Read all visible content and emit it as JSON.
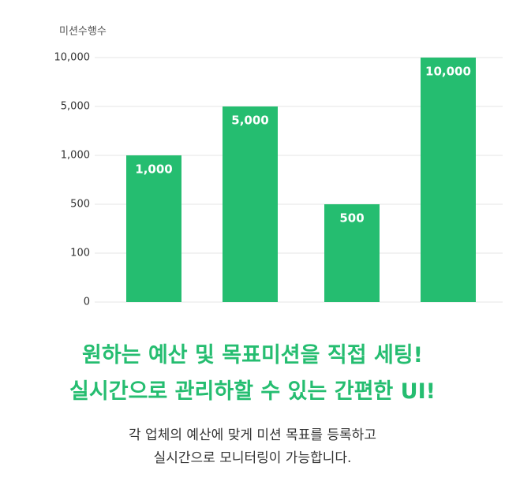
{
  "chart_data": {
    "type": "bar",
    "y_label": "미션수행수",
    "categories": [
      null,
      null,
      null,
      null
    ],
    "values": [
      1000,
      5000,
      500,
      10000
    ],
    "value_labels": [
      "1,000",
      "5,000",
      "500",
      "10,000"
    ],
    "color": "#25bd70",
    "ylim": [
      0,
      10000
    ],
    "yticks": [
      0,
      100,
      500,
      {
        "value": 1000,
        "label": "1,000"
      },
      {
        "value": 5000,
        "label": "5,000"
      },
      {
        "value": 10000,
        "label": "10,000"
      }
    ],
    "grid": true
  },
  "headline": [
    "원하는 예산 및 목표미션을 직접 세팅!",
    "실시간으로 관리하할 수 있는 간편한 UI!"
  ],
  "description": [
    "각 업체의 예산에 맞게 미션 목표를 등록하고",
    "실시간으로 모니터링이 가능합니다."
  ]
}
